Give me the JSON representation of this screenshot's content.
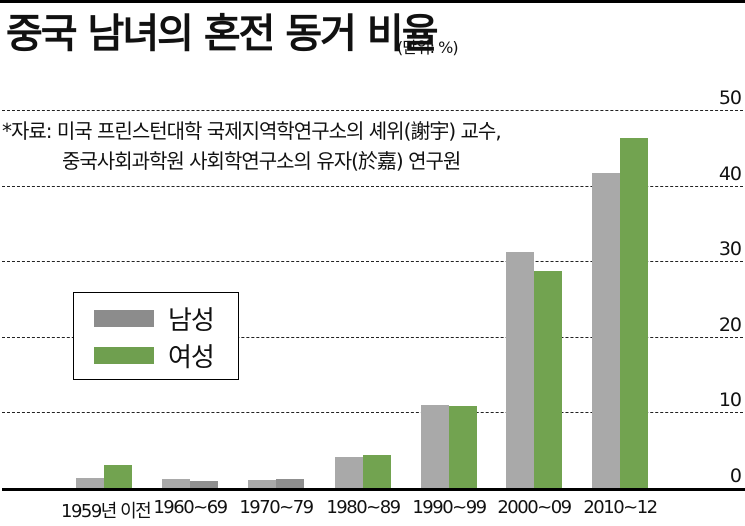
{
  "title": "중국 남녀의 혼전 동거 비율",
  "unit": "(단위: %)",
  "source": {
    "line1": "*자료: 미국 프린스턴대학 국제지역학연구소의 셰위(謝宇) 교수,",
    "line2": "중국사회과학원 사회학연구소의 유자(於嘉) 연구원"
  },
  "legend": {
    "items": [
      {
        "label": "남성",
        "color": "#8c8c8c"
      },
      {
        "label": "여성",
        "color": "#6f9f4f"
      }
    ]
  },
  "colors": {
    "male": "#a9a9a9",
    "female": "#72a350",
    "female_muted": "#8f8f8f",
    "grid": "#222222",
    "axis": "#000000"
  },
  "y_ticks": [
    "50",
    "40",
    "30",
    "20",
    "10",
    "0"
  ],
  "x_labels": [
    "1959년 이전",
    "1960~69",
    "1970~79",
    "1980~89",
    "1990~99",
    "2000~09",
    "2010~12"
  ],
  "chart_data": {
    "type": "bar",
    "title": "중국 남녀의 혼전 동거 비율",
    "subtitle": "(단위: %)",
    "xlabel": "",
    "ylabel": "%",
    "ylim": [
      0,
      50
    ],
    "yticks": [
      0,
      10,
      20,
      30,
      40,
      50
    ],
    "grid": true,
    "legend_position": "left-middle",
    "categories": [
      "1959년 이전",
      "1960~69",
      "1970~79",
      "1980~89",
      "1990~99",
      "2000~09",
      "2010~12"
    ],
    "series": [
      {
        "name": "남성",
        "values": [
          1.3,
          1.2,
          1.1,
          4.1,
          11.0,
          31.2,
          41.7
        ]
      },
      {
        "name": "여성",
        "values": [
          3.1,
          0.9,
          1.2,
          4.3,
          10.8,
          28.7,
          46.3
        ]
      }
    ],
    "annotations": [
      "*자료: 미국 프린스턴대학 국제지역학연구소의 셰위(謝宇) 교수, 중국사회과학원 사회학연구소의 유자(於嘉) 연구원"
    ]
  }
}
